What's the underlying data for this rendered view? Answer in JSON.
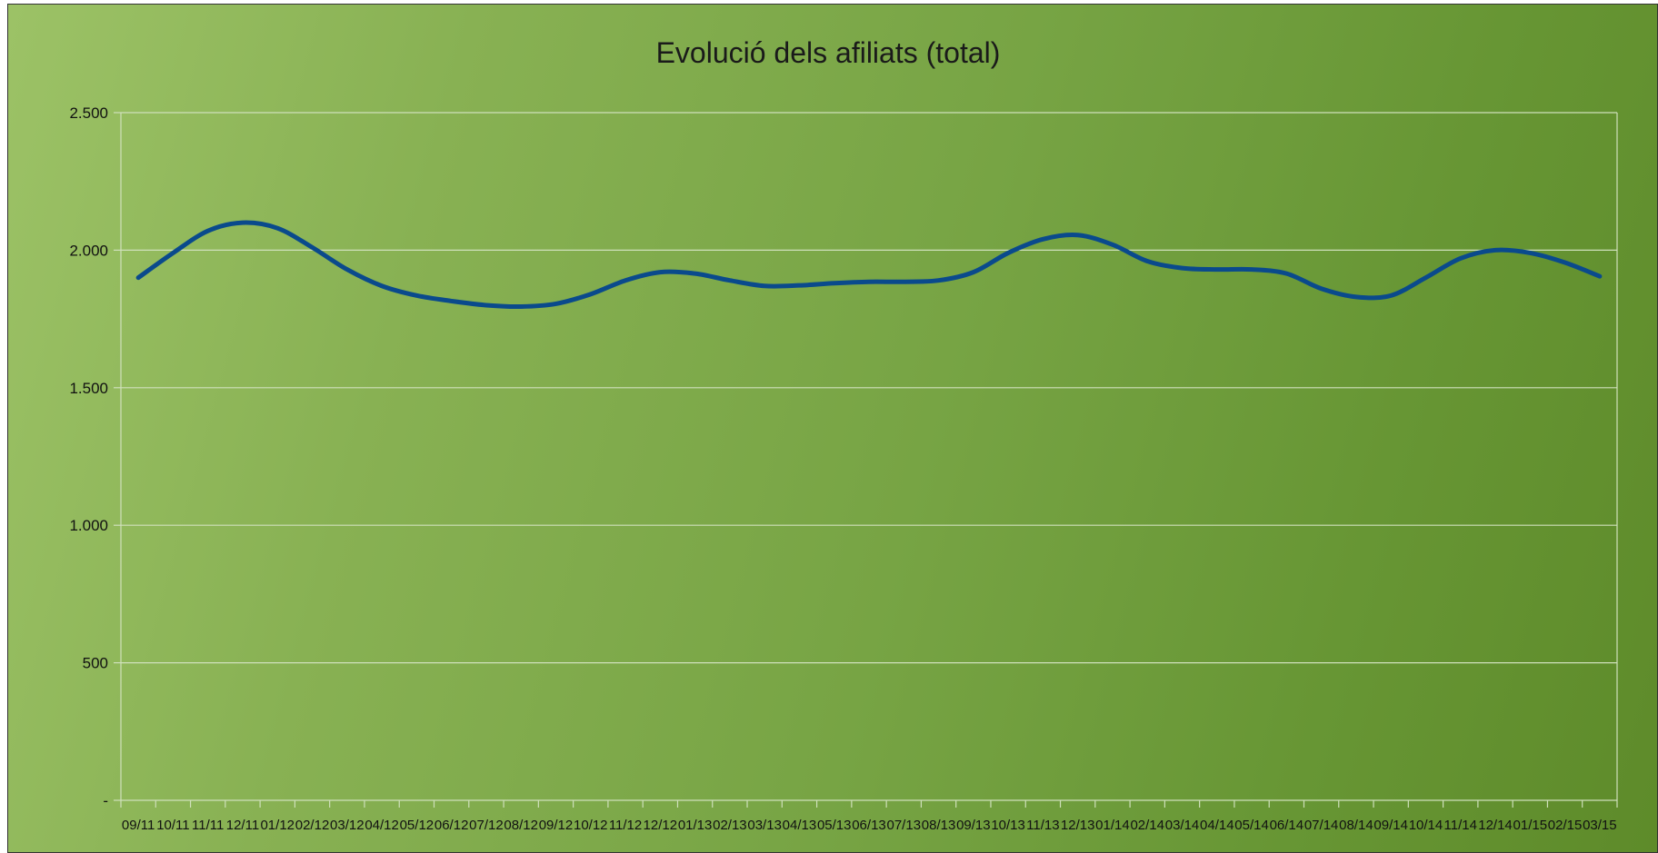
{
  "chart_data": {
    "type": "line",
    "title": "Evolució dels afiliats (total)",
    "xlabel": "",
    "ylabel": "",
    "ylim": [
      0,
      2500
    ],
    "yticks": [
      {
        "value": 0,
        "label": "-"
      },
      {
        "value": 500,
        "label": "500"
      },
      {
        "value": 1000,
        "label": "1.000"
      },
      {
        "value": 1500,
        "label": "1.500"
      },
      {
        "value": 2000,
        "label": "2.000"
      },
      {
        "value": 2500,
        "label": "2.500"
      }
    ],
    "grid": true,
    "legend": "none",
    "line_color": "#0a4a8c",
    "categories": [
      "09/11",
      "10/11",
      "11/11",
      "12/11",
      "01/12",
      "02/12",
      "03/12",
      "04/12",
      "05/12",
      "06/12",
      "07/12",
      "08/12",
      "09/12",
      "10/12",
      "11/12",
      "12/12",
      "01/13",
      "02/13",
      "03/13",
      "04/13",
      "05/13",
      "06/13",
      "07/13",
      "08/13",
      "09/13",
      "10/13",
      "11/13",
      "12/13",
      "01/14",
      "02/14",
      "03/14",
      "04/14",
      "05/14",
      "06/14",
      "07/14",
      "08/14",
      "09/14",
      "10/14",
      "11/14",
      "12/14",
      "01/15",
      "02/15",
      "03/15"
    ],
    "series": [
      {
        "values": [
          1900,
          1990,
          2070,
          2100,
          2080,
          2010,
          1930,
          1870,
          1835,
          1815,
          1800,
          1795,
          1805,
          1840,
          1890,
          1920,
          1915,
          1890,
          1870,
          1872,
          1880,
          1885,
          1885,
          1890,
          1920,
          1990,
          2040,
          2055,
          2020,
          1960,
          1935,
          1930,
          1930,
          1915,
          1860,
          1830,
          1835,
          1900,
          1970,
          2000,
          1990,
          1955,
          1905
        ]
      }
    ]
  }
}
